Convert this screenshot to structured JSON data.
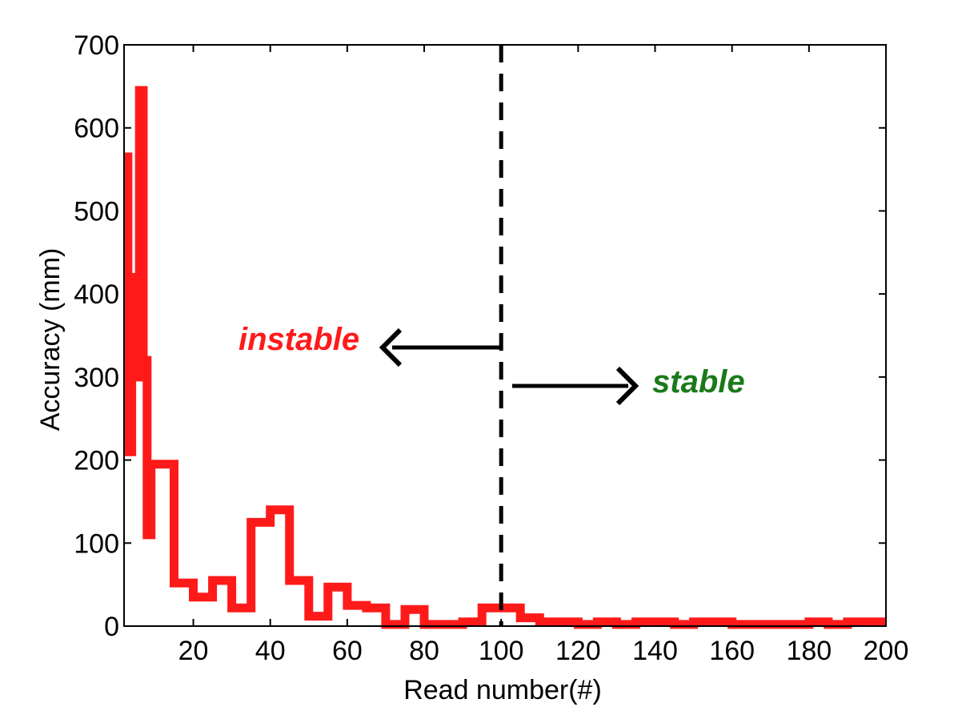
{
  "chart_data": {
    "type": "line",
    "xlabel": "Read number(#)",
    "ylabel": "Accuracy (mm)",
    "xlim": [
      2,
      200
    ],
    "ylim": [
      0,
      700
    ],
    "xticks": [
      20,
      40,
      60,
      80,
      100,
      120,
      140,
      160,
      180,
      200
    ],
    "yticks": [
      0,
      100,
      200,
      300,
      400,
      500,
      600,
      700
    ],
    "grid": false,
    "series": [
      {
        "color": "#ff1a1a",
        "step": "post",
        "x": [
          2,
          3,
          4,
          5,
          6,
          7,
          8,
          9,
          10,
          12,
          15,
          20,
          25,
          30,
          35,
          40,
          45,
          50,
          55,
          60,
          65,
          70,
          75,
          80,
          85,
          90,
          95,
          100,
          105,
          110,
          115,
          120,
          125,
          130,
          135,
          140,
          145,
          150,
          155,
          160,
          165,
          170,
          175,
          180,
          185,
          190,
          195,
          200
        ],
        "y": [
          565,
          210,
          420,
          300,
          645,
          320,
          110,
          195,
          195,
          195,
          52,
          35,
          55,
          22,
          125,
          140,
          55,
          12,
          47,
          25,
          22,
          2,
          20,
          2,
          2,
          5,
          22,
          22,
          10,
          5,
          5,
          2,
          5,
          2,
          5,
          5,
          2,
          5,
          5,
          2,
          2,
          2,
          2,
          5,
          2,
          5,
          5,
          5
        ]
      }
    ],
    "vline": {
      "x": 100,
      "style": "dashed",
      "color": "#000000"
    },
    "annotations": [
      {
        "text": "instable",
        "color": "#ff1a1a",
        "arrow": "left"
      },
      {
        "text": "stable",
        "color": "#1a7a1a",
        "arrow": "right"
      }
    ]
  }
}
